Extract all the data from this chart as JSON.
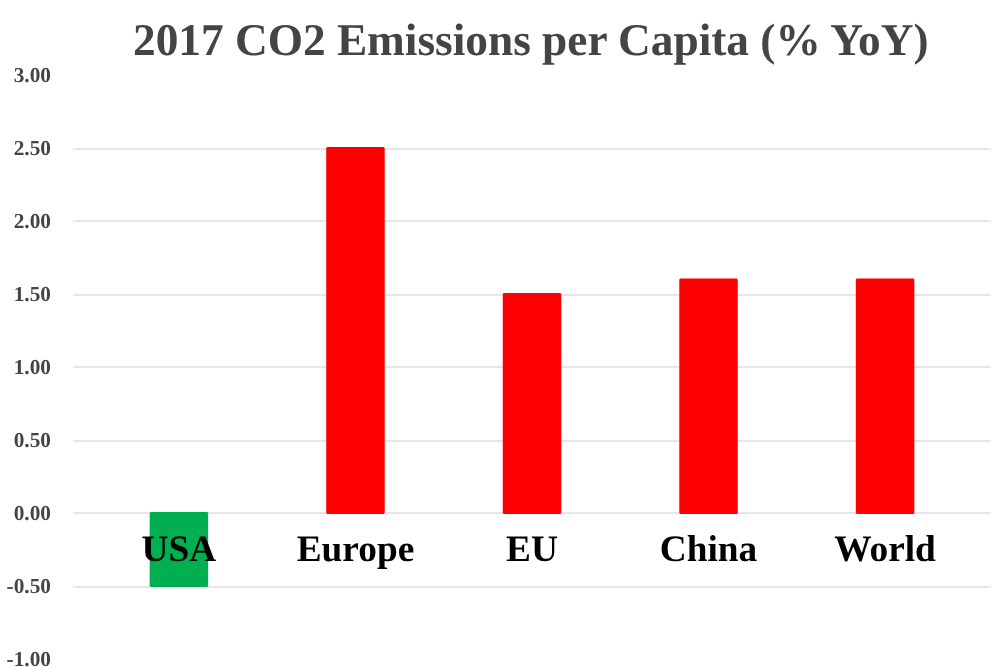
{
  "chart_data": {
    "type": "bar",
    "title": "2017 CO2 Emissions per Capita (% YoY)",
    "categories": [
      "USA",
      "Europe",
      "EU",
      "China",
      "World"
    ],
    "values": [
      -0.5,
      2.5,
      1.5,
      1.6,
      1.6
    ],
    "colors": [
      "#00b050",
      "#ff0000",
      "#ff0000",
      "#ff0000",
      "#ff0000"
    ],
    "ylim": [
      -1,
      3
    ],
    "yticks": [
      {
        "value": -1,
        "label": "-1.00"
      },
      {
        "value": -0.5,
        "label": "-0.50"
      },
      {
        "value": 0,
        "label": "0.00"
      },
      {
        "value": 0.5,
        "label": "0.50"
      },
      {
        "value": 1,
        "label": "1.00"
      },
      {
        "value": 1.5,
        "label": "1.50"
      },
      {
        "value": 2,
        "label": "2.00"
      },
      {
        "value": 2.5,
        "label": "2.50"
      },
      {
        "value": 3,
        "label": "3.00"
      }
    ],
    "grid": "y"
  }
}
